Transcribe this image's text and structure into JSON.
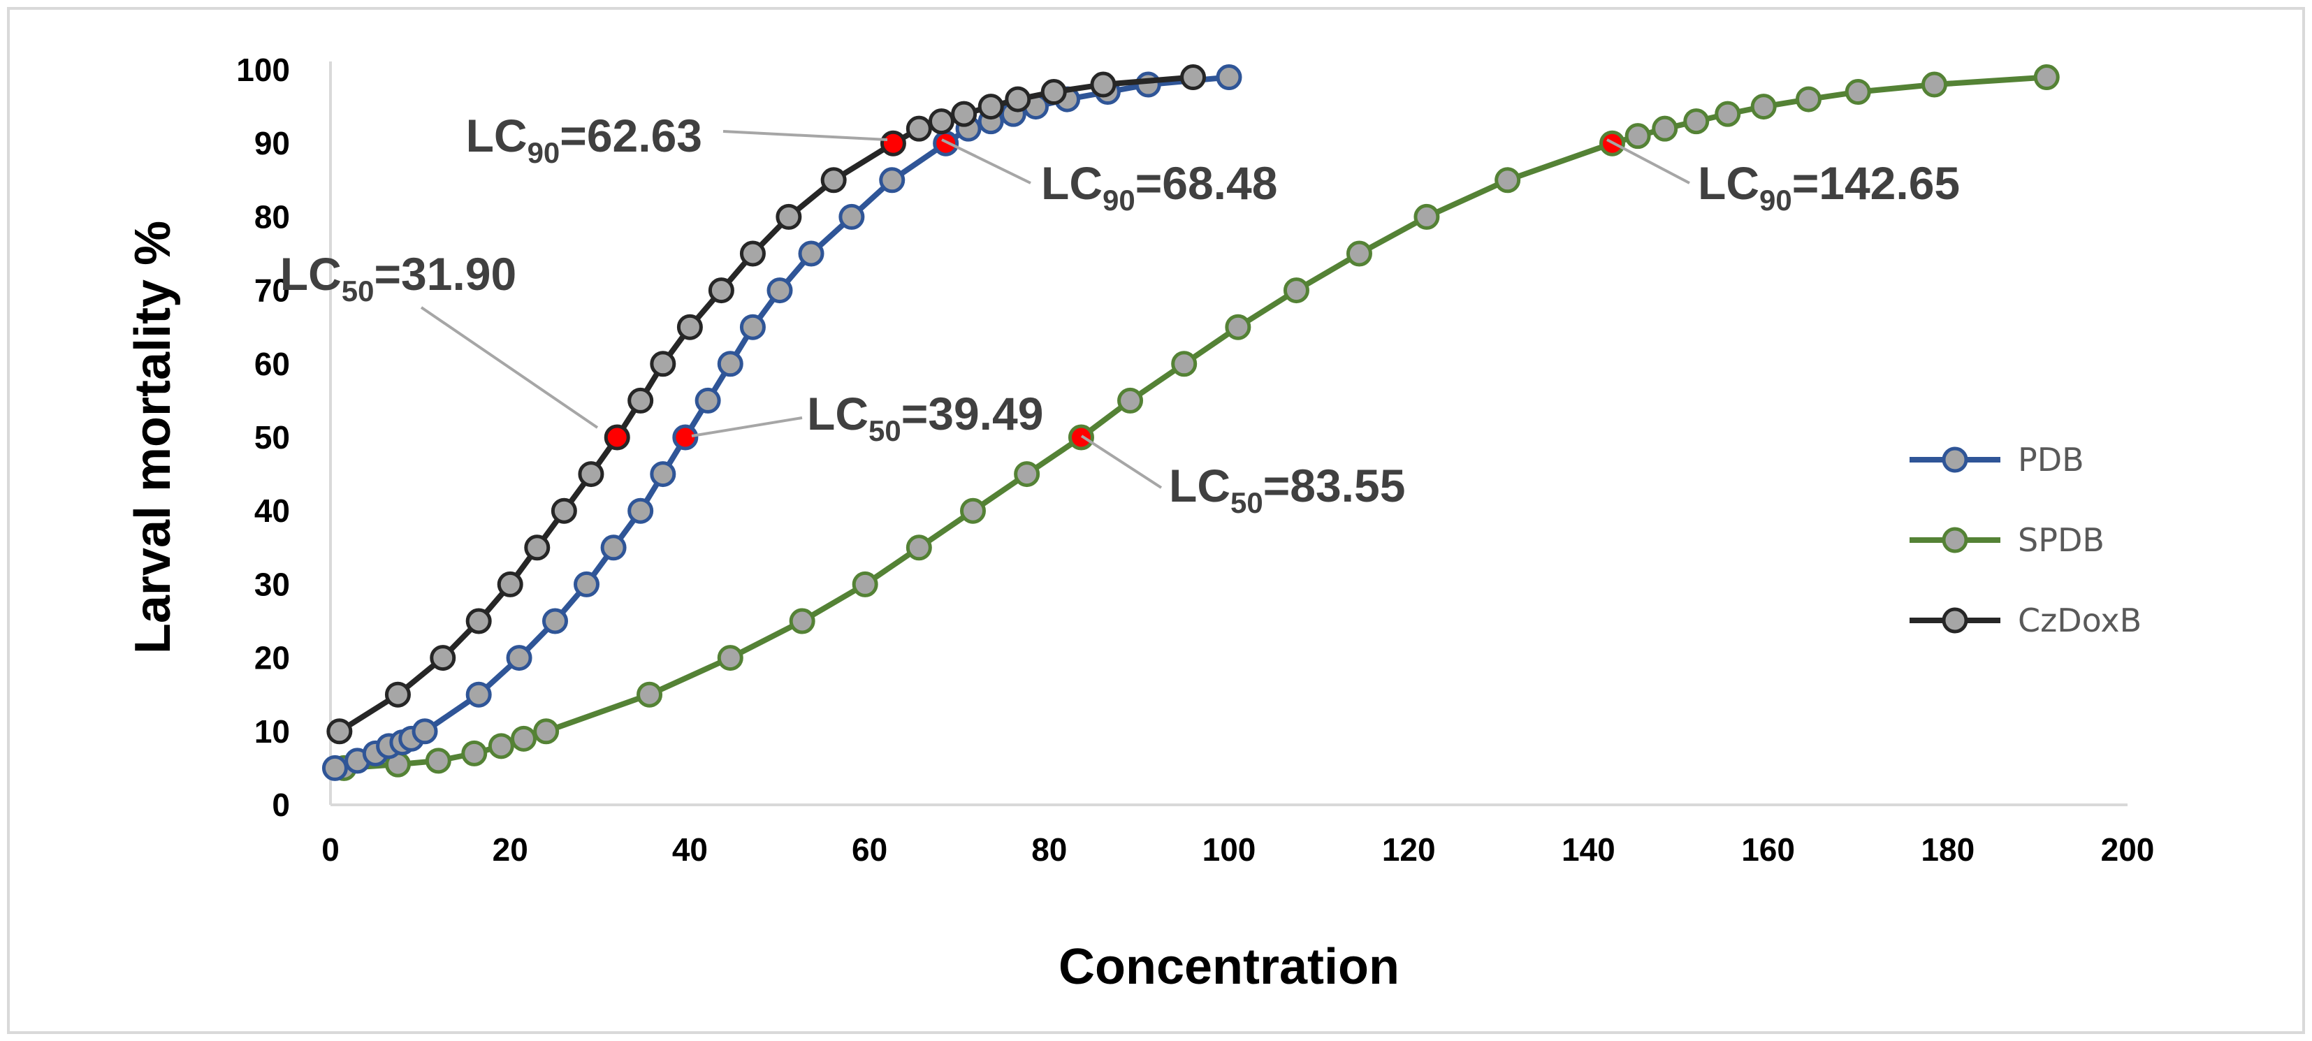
{
  "chart_data": {
    "type": "line",
    "title": "",
    "xlabel": "Concentration",
    "ylabel": "Larval mortality %",
    "xlim": [
      0,
      200
    ],
    "ylim": [
      0,
      100
    ],
    "x_ticks": [
      0,
      20,
      40,
      60,
      80,
      100,
      120,
      140,
      160,
      180,
      200
    ],
    "y_ticks": [
      0,
      10,
      20,
      30,
      40,
      50,
      60,
      70,
      80,
      90,
      100
    ],
    "grid": false,
    "legend_position": "right",
    "marker_fill": "#a6a6a6",
    "highlight_color": "#ff0000",
    "series": [
      {
        "name": "PDB",
        "color": "#2f5597",
        "x": [
          0.5,
          3.0,
          5.0,
          6.5,
          8.0,
          9.0,
          10.5,
          16.5,
          21.0,
          25.0,
          28.5,
          31.5,
          34.5,
          37.0,
          39.49,
          42.0,
          44.5,
          47.0,
          50.0,
          53.5,
          58.0,
          62.5,
          68.48,
          71.0,
          73.5,
          76.0,
          78.5,
          82.0,
          86.5,
          91.0,
          100.0
        ],
        "y": [
          5,
          6,
          7,
          8,
          8.5,
          9,
          10,
          15,
          20,
          25,
          30,
          35,
          40,
          45,
          50,
          55,
          60,
          65,
          70,
          75,
          80,
          85,
          90,
          92,
          93,
          94,
          95,
          96,
          97,
          98,
          99
        ]
      },
      {
        "name": "SPDB",
        "color": "#548235",
        "x": [
          1.5,
          7.5,
          12.0,
          16.0,
          19.0,
          21.5,
          24.0,
          35.5,
          44.5,
          52.5,
          59.5,
          65.5,
          71.5,
          77.5,
          83.55,
          89.0,
          95.0,
          101.0,
          107.5,
          114.5,
          122.0,
          131.0,
          142.65,
          145.5,
          148.5,
          152.0,
          155.5,
          159.5,
          164.5,
          170.0,
          178.5,
          191.0
        ],
        "y": [
          5,
          5.5,
          6,
          7,
          8,
          9,
          10,
          15,
          20,
          25,
          30,
          35,
          40,
          45,
          50,
          55,
          60,
          65,
          70,
          75,
          80,
          85,
          90,
          91,
          92,
          93,
          94,
          95,
          96,
          97,
          98,
          99
        ]
      },
      {
        "name": "CzDoxB",
        "color": "#262626",
        "x": [
          1.0,
          7.5,
          12.5,
          16.5,
          20.0,
          23.0,
          26.0,
          29.0,
          31.9,
          34.5,
          37.0,
          40.0,
          43.5,
          47.0,
          51.0,
          56.0,
          62.63,
          65.5,
          68.0,
          70.5,
          73.5,
          76.5,
          80.5,
          86.0,
          96.0
        ],
        "y": [
          10,
          15,
          20,
          25,
          30,
          35,
          40,
          45,
          50,
          55,
          60,
          65,
          70,
          75,
          80,
          85,
          90,
          92,
          93,
          94,
          95,
          96,
          97,
          98,
          99
        ]
      }
    ],
    "annotations": [
      {
        "series": "CzDoxB",
        "prefix": "LC",
        "sub": "50",
        "value_text": "=31.90",
        "x": 31.9,
        "y": 50
      },
      {
        "series": "PDB",
        "prefix": "LC",
        "sub": "50",
        "value_text": "=39.49",
        "x": 39.49,
        "y": 50
      },
      {
        "series": "SPDB",
        "prefix": "LC",
        "sub": "50",
        "value_text": "=83.55",
        "x": 83.55,
        "y": 50
      },
      {
        "series": "CzDoxB",
        "prefix": "LC",
        "sub": "90",
        "value_text": "=62.63",
        "x": 62.63,
        "y": 90
      },
      {
        "series": "PDB",
        "prefix": "LC",
        "sub": "90",
        "value_text": "=68.48",
        "x": 68.48,
        "y": 90
      },
      {
        "series": "SPDB",
        "prefix": "LC",
        "sub": "90",
        "value_text": "=142.65",
        "x": 142.65,
        "y": 90
      }
    ]
  }
}
